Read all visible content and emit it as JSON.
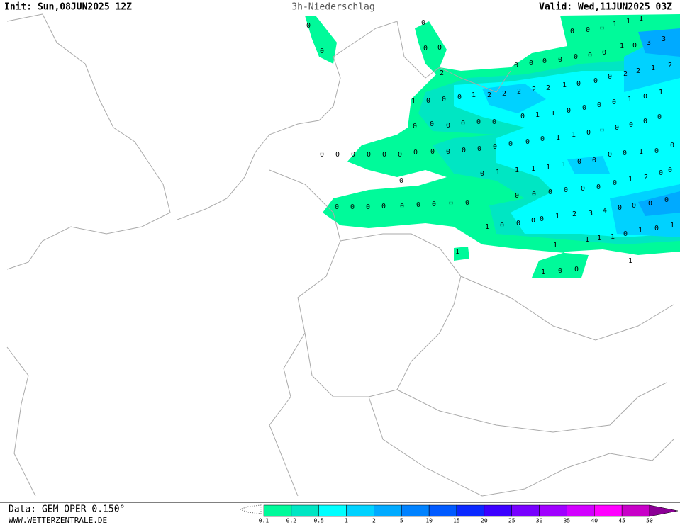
{
  "header": {
    "init": "Init: Sun,08JUN2025 12Z",
    "title": "3h-Niederschlag",
    "valid": "Valid: Wed,11JUN2025 03Z"
  },
  "footer": {
    "data": "Data: GEM OPER 0.150°",
    "site": "WWW.WETTERZENTRALE.DE"
  },
  "legend": {
    "levels": [
      0.1,
      0.2,
      0.5,
      1,
      2,
      5,
      10,
      15,
      20,
      25,
      30,
      35,
      40,
      45,
      50
    ],
    "colors": [
      "#00fa9a",
      "#00e6c3",
      "#00ffff",
      "#00d2ff",
      "#00aaff",
      "#0082ff",
      "#005aff",
      "#0a28ff",
      "#3c00ff",
      "#7800ff",
      "#a000ff",
      "#d200ff",
      "#ff00ff",
      "#c800c8",
      "#8c0096"
    ]
  },
  "grid_values": [
    0,
    0,
    0,
    0,
    0,
    1,
    1,
    1,
    0,
    0,
    0,
    3,
    3,
    0,
    1,
    0,
    0,
    0,
    0,
    0,
    0,
    0,
    2,
    2,
    1,
    2,
    2,
    0,
    0,
    0,
    1,
    2,
    2,
    2,
    2,
    2,
    1,
    0,
    0,
    0,
    1,
    1,
    0,
    1,
    0,
    0,
    0,
    0,
    1,
    1,
    0,
    0,
    0,
    0,
    0,
    0,
    0,
    1,
    1,
    0,
    0,
    0,
    0,
    0,
    0,
    0,
    0,
    0,
    0,
    0,
    0,
    0,
    0,
    0,
    0,
    0,
    0,
    0,
    0,
    0,
    0,
    0,
    1,
    0,
    0,
    0,
    0,
    1,
    1,
    1,
    1,
    1,
    0,
    0,
    0,
    0,
    2,
    1,
    0,
    0,
    0,
    0,
    0,
    0,
    0,
    0,
    0,
    0,
    0,
    0,
    0,
    0,
    0,
    0,
    0,
    0,
    0,
    0,
    4,
    3,
    2,
    1,
    0,
    0,
    0,
    0,
    1,
    1,
    0,
    1,
    0,
    1,
    1,
    1,
    1,
    1,
    1,
    1,
    0,
    0,
    0,
    0,
    0,
    0
  ]
}
